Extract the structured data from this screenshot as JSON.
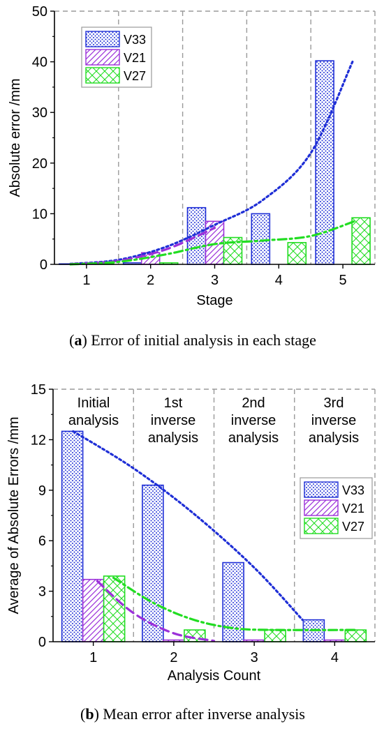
{
  "colors": {
    "V33": "#1f2fd6",
    "V21": "#9b30d9",
    "V27": "#22dd22",
    "grid": "#9a9a9a"
  },
  "chart_data": [
    {
      "type": "bar",
      "panel": "a",
      "caption_label": "a",
      "caption_text": ") Error of initial analysis in each stage",
      "xlabel": "Stage",
      "ylabel": "Absolute error /mm",
      "categories": [
        "1",
        "2",
        "3",
        "4",
        "5"
      ],
      "ylim": [
        0,
        50
      ],
      "yticks": [
        0,
        10,
        20,
        30,
        40,
        50
      ],
      "grid": "vertical dashed between groups, dashed top border",
      "legend_position": "top-left",
      "series": [
        {
          "name": "V33",
          "values": [
            0.1,
            0.3,
            11.2,
            10.0,
            40.2
          ],
          "pattern": "dots",
          "trend": "dotted"
        },
        {
          "name": "V21",
          "values": [
            0.1,
            2.3,
            8.5,
            0.0,
            0.0
          ],
          "pattern": "diagonal",
          "trend": "dashed"
        },
        {
          "name": "V27",
          "values": [
            0.1,
            0.3,
            5.3,
            4.3,
            9.2
          ],
          "pattern": "crosshatch",
          "trend": "dash-dot"
        }
      ],
      "trend_points": {
        "V33": [
          [
            0.75,
            0.1
          ],
          [
            1.5,
            0.9
          ],
          [
            2.25,
            3.5
          ],
          [
            3.0,
            7.8
          ],
          [
            3.75,
            12.7
          ],
          [
            4.5,
            22.0
          ],
          [
            5.15,
            40.0
          ]
        ],
        "V21": [
          [
            0.75,
            0.05
          ],
          [
            1.5,
            0.7
          ],
          [
            2.25,
            3.0
          ],
          [
            3.0,
            7.2
          ]
        ],
        "V27": [
          [
            0.75,
            0.0
          ],
          [
            1.5,
            0.5
          ],
          [
            2.25,
            2.0
          ],
          [
            3.0,
            4.0
          ],
          [
            3.75,
            4.7
          ],
          [
            4.5,
            5.6
          ],
          [
            5.2,
            8.6
          ]
        ]
      }
    },
    {
      "type": "bar",
      "panel": "b",
      "caption_label": "b",
      "caption_text": ") Mean error after inverse analysis",
      "xlabel": "Analysis Count",
      "ylabel": "Average of Absolute Errors /mm",
      "categories": [
        "1",
        "2",
        "3",
        "4"
      ],
      "ylim": [
        0,
        15
      ],
      "yticks": [
        0,
        3,
        6,
        9,
        12,
        15
      ],
      "grid": "vertical dashed between groups, dashed top border",
      "legend_position": "middle-right",
      "annotations": [
        {
          "lines": [
            "Initial",
            "analysis"
          ]
        },
        {
          "lines": [
            "1st",
            "inverse",
            "analysis"
          ]
        },
        {
          "lines": [
            "2nd",
            "inverse",
            "analysis"
          ]
        },
        {
          "lines": [
            "3rd",
            "inverse",
            "analysis"
          ]
        }
      ],
      "series": [
        {
          "name": "V33",
          "values": [
            12.5,
            9.3,
            4.7,
            1.3
          ],
          "pattern": "dots",
          "trend": "dotted"
        },
        {
          "name": "V21",
          "values": [
            3.7,
            0.1,
            0.1,
            0.1
          ],
          "pattern": "diagonal",
          "trend": "dashed"
        },
        {
          "name": "V27",
          "values": [
            3.9,
            0.7,
            0.7,
            0.7
          ],
          "pattern": "crosshatch",
          "trend": "dash-dot"
        }
      ],
      "trend_points": {
        "V33": [
          [
            0.75,
            12.5
          ],
          [
            1.5,
            10.3
          ],
          [
            2.25,
            7.6
          ],
          [
            3.0,
            4.4
          ],
          [
            3.6,
            1.3
          ]
        ],
        "V21": [
          [
            1.05,
            3.6
          ],
          [
            1.5,
            1.7
          ],
          [
            2.0,
            0.5
          ],
          [
            2.5,
            0.05
          ]
        ],
        "V27": [
          [
            1.25,
            3.8
          ],
          [
            1.75,
            2.3
          ],
          [
            2.25,
            1.3
          ],
          [
            2.75,
            0.8
          ],
          [
            3.25,
            0.7
          ],
          [
            4.25,
            0.7
          ]
        ]
      }
    }
  ]
}
